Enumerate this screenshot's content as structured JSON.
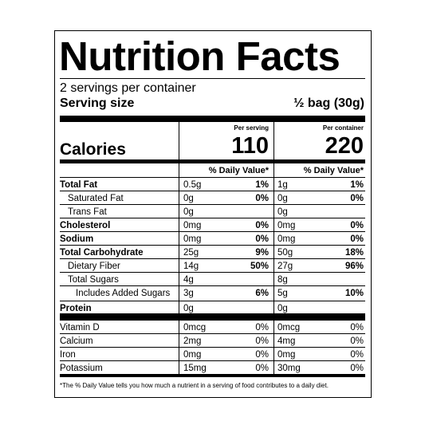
{
  "title": "Nutrition Facts",
  "servings": "2 servings per container",
  "serving_size_label": "Serving size",
  "serving_size": "½ bag (30g)",
  "columns": [
    "Per serving",
    "Per container"
  ],
  "calories": {
    "label": "Calories",
    "values": [
      110,
      220
    ]
  },
  "dv_header": [
    "% Daily Value*",
    "% Daily Value*"
  ],
  "nutrients": [
    {
      "name": "Total Fat",
      "bold": true,
      "indent": 0,
      "values": [
        [
          "0.5g",
          "1%"
        ],
        [
          "1g",
          "1%"
        ]
      ]
    },
    {
      "name": "Saturated Fat",
      "bold": false,
      "indent": 1,
      "values": [
        [
          "0g",
          "0%"
        ],
        [
          "0g",
          "0%"
        ]
      ]
    },
    {
      "name": "Trans Fat",
      "bold": false,
      "indent": 1,
      "values": [
        [
          "0g"
        ],
        [
          "0g"
        ]
      ]
    },
    {
      "name": "Cholesterol",
      "bold": true,
      "indent": 0,
      "values": [
        [
          "0mg",
          "0%"
        ],
        [
          "0mg",
          "0%"
        ]
      ]
    },
    {
      "name": "Sodium",
      "bold": true,
      "indent": 0,
      "values": [
        [
          "0mg",
          "0%"
        ],
        [
          "0mg",
          "0%"
        ]
      ]
    },
    {
      "name": "Total Carbohydrate",
      "bold": true,
      "indent": 0,
      "values": [
        [
          "25g",
          "9%"
        ],
        [
          "50g",
          "18%"
        ]
      ]
    },
    {
      "name": "Dietary Fiber",
      "bold": false,
      "indent": 1,
      "values": [
        [
          "14g",
          "50%"
        ],
        [
          "27g",
          "96%"
        ]
      ]
    },
    {
      "name": "Total Sugars",
      "bold": false,
      "indent": 1,
      "values": [
        [
          "4g"
        ],
        [
          "8g"
        ]
      ]
    },
    {
      "name": "Includes Added Sugars",
      "bold": false,
      "indent": 2,
      "values": [
        [
          "3g",
          "6%"
        ],
        [
          "5g",
          "10%"
        ]
      ]
    },
    {
      "name": "Protein",
      "bold": true,
      "indent": 0,
      "values": [
        [
          "0g"
        ],
        [
          "0g"
        ]
      ]
    }
  ],
  "vitamins": [
    {
      "name": "Vitamin D",
      "values": [
        [
          "0mcg",
          "0%"
        ],
        [
          "0mcg",
          "0%"
        ]
      ]
    },
    {
      "name": "Calcium",
      "values": [
        [
          "2mg",
          "0%"
        ],
        [
          "4mg",
          "0%"
        ]
      ]
    },
    {
      "name": "Iron",
      "values": [
        [
          "0mg",
          "0%"
        ],
        [
          "0mg",
          "0%"
        ]
      ]
    },
    {
      "name": "Potassium",
      "values": [
        [
          "15mg",
          "0%"
        ],
        [
          "30mg",
          "0%"
        ]
      ]
    }
  ],
  "footnote": "*The % Daily Value tells you how much a nutrient in a serving of food contributes to a daily diet."
}
